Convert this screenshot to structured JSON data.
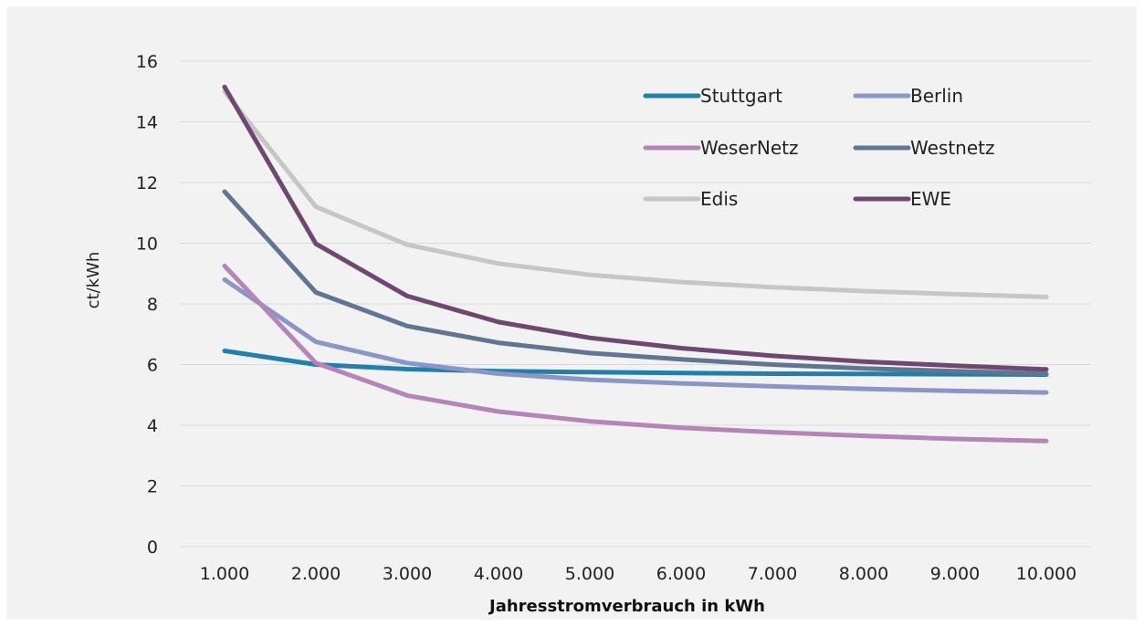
{
  "chart_data": {
    "type": "line",
    "title": "",
    "xlabel": "Jahresstromverbrauch in kWh",
    "ylabel": "ct/kWh",
    "categories": [
      "1.000",
      "2.000",
      "3.000",
      "4.000",
      "5.000",
      "6.000",
      "7.000",
      "8.000",
      "9.000",
      "10.000"
    ],
    "ylim": [
      0,
      16
    ],
    "yticks": [
      0,
      2,
      4,
      6,
      8,
      10,
      12,
      14,
      16
    ],
    "grid": true,
    "legend_position": "top-right",
    "series": [
      {
        "name": "Stuttgart",
        "color": "#1f7fad",
        "values": [
          6.45,
          6.0,
          5.85,
          5.78,
          5.75,
          5.72,
          5.7,
          5.69,
          5.68,
          5.67
        ]
      },
      {
        "name": "Berlin",
        "color": "#8b96c8",
        "values": [
          8.8,
          6.75,
          6.05,
          5.7,
          5.5,
          5.38,
          5.28,
          5.2,
          5.13,
          5.08
        ]
      },
      {
        "name": "WeserNetz",
        "color": "#b585b8",
        "values": [
          9.25,
          6.05,
          4.98,
          4.45,
          4.13,
          3.92,
          3.77,
          3.65,
          3.55,
          3.48
        ]
      },
      {
        "name": "Westnetz",
        "color": "#5f7592",
        "values": [
          11.7,
          8.38,
          7.27,
          6.72,
          6.38,
          6.17,
          6.0,
          5.87,
          5.78,
          5.7
        ]
      },
      {
        "name": "Edis",
        "color": "#c5c6c6",
        "values": [
          15.0,
          11.2,
          9.95,
          9.33,
          8.96,
          8.72,
          8.55,
          8.42,
          8.32,
          8.23
        ]
      },
      {
        "name": "EWE",
        "color": "#6e4870",
        "values": [
          15.15,
          9.98,
          8.26,
          7.4,
          6.88,
          6.54,
          6.29,
          6.1,
          5.96,
          5.84
        ]
      }
    ]
  }
}
